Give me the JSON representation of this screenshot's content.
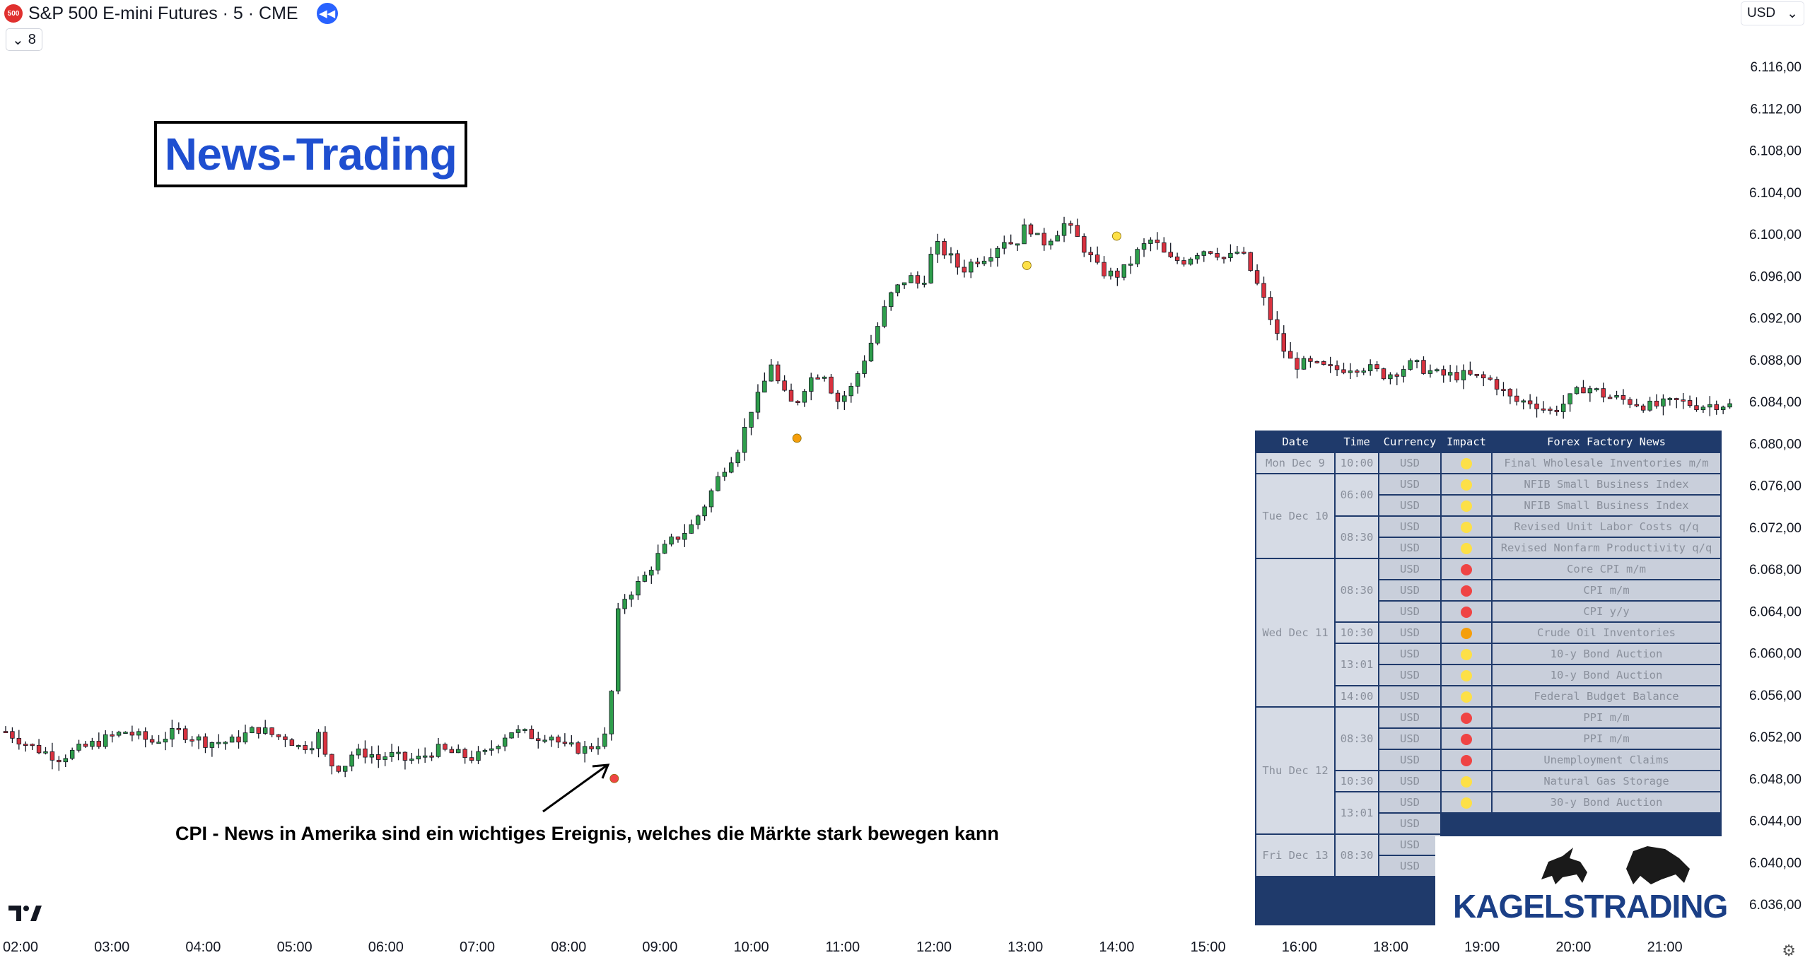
{
  "header": {
    "logo_text": "500",
    "symbol": "S&P 500 E-mini Futures · 5 · CME",
    "indicator_count": "8",
    "currency": "USD"
  },
  "title": "News-Trading",
  "annotation": "CPI - News in Amerika sind ein wichtiges Ereignis, welches die Märkte stark bewegen kann",
  "brand": {
    "name": "KAGELSTRADING"
  },
  "colors": {
    "up": "#2e9e4b",
    "down": "#d9323f",
    "wick": "#131722",
    "high_impact": "#ef4444",
    "medium_impact": "#f59e0b",
    "low_impact": "#fde047"
  },
  "icons": [
    "replay-icon",
    "chevron-down-icon",
    "tradingview-logo-icon",
    "settings-gear-icon"
  ],
  "chart_data": {
    "type": "candlestick",
    "title": "S&P 500 E-mini Futures · 5 · CME",
    "ylim": [
      6034.5,
      6117.5
    ],
    "y_ticks": [
      "6.116,00",
      "6.112,00",
      "6.108,00",
      "6.104,00",
      "6.100,00",
      "6.096,00",
      "6.092,00",
      "6.088,00",
      "6.084,00",
      "6.080,00",
      "6.076,00",
      "6.072,00",
      "6.068,00",
      "6.064,00",
      "6.060,00",
      "6.056,00",
      "6.052,00",
      "6.048,00",
      "6.044,00",
      "6.040,00",
      "6.036,00"
    ],
    "x_ticks": [
      "02:00",
      "03:00",
      "04:00",
      "05:00",
      "06:00",
      "07:00",
      "08:00",
      "09:00",
      "10:00",
      "11:00",
      "12:00",
      "13:00",
      "14:00",
      "15:00",
      "16:00",
      "18:00",
      "19:00",
      "20:00",
      "21:00"
    ],
    "close_path": [
      [
        0,
        6052.5
      ],
      [
        10,
        6051.0
      ],
      [
        20,
        6050.0
      ],
      [
        45,
        6052.5
      ],
      [
        55,
        6051.5
      ],
      [
        60,
        6052.0
      ],
      [
        65,
        6052.5
      ],
      [
        75,
        6051.5
      ],
      [
        85,
        6051.5
      ],
      [
        95,
        6052.8
      ],
      [
        102,
        6052.0
      ],
      [
        106,
        6052.0
      ],
      [
        110,
        6051.0
      ],
      [
        115,
        6051.3
      ],
      [
        118,
        6052.2
      ],
      [
        121,
        6049.5
      ],
      [
        127,
        6049.0
      ],
      [
        130,
        6050.3
      ],
      [
        137,
        6050.5
      ],
      [
        140,
        6049.8
      ],
      [
        144,
        6050.3
      ],
      [
        150,
        6049.8
      ],
      [
        155,
        6049.8
      ],
      [
        162,
        6050.8
      ],
      [
        175,
        6050.0
      ],
      [
        180,
        6050.2
      ],
      [
        190,
        6052.6
      ],
      [
        200,
        6052.0
      ],
      [
        205,
        6052.3
      ],
      [
        210,
        6051.0
      ],
      [
        218,
        6050.8
      ],
      [
        222,
        6051.2
      ],
      [
        226,
        6052.0
      ],
      [
        228,
        6055.5
      ],
      [
        230,
        6063.0
      ],
      [
        232,
        6065.0
      ],
      [
        236,
        6066.0
      ],
      [
        240,
        6067.0
      ],
      [
        245,
        6069.0
      ],
      [
        250,
        6070.5
      ],
      [
        258,
        6072.0
      ],
      [
        263,
        6074.0
      ],
      [
        270,
        6077.5
      ],
      [
        277,
        6080.0
      ],
      [
        280,
        6083.0
      ],
      [
        285,
        6085.0
      ],
      [
        288,
        6088.0
      ],
      [
        292,
        6085.0
      ],
      [
        297,
        6083.5
      ],
      [
        302,
        6086.0
      ],
      [
        308,
        6087.0
      ],
      [
        313,
        6084.0
      ],
      [
        318,
        6085.0
      ],
      [
        325,
        6089.0
      ],
      [
        333,
        6094.0
      ],
      [
        340,
        6096.0
      ],
      [
        345,
        6095.0
      ],
      [
        350,
        6099.0
      ],
      [
        355,
        6098.0
      ],
      [
        360,
        6096.5
      ],
      [
        365,
        6097.5
      ],
      [
        370,
        6098.0
      ],
      [
        376,
        6099.5
      ],
      [
        380,
        6099.0
      ],
      [
        385,
        6101.0
      ],
      [
        390,
        6099.0
      ],
      [
        395,
        6100.0
      ],
      [
        399,
        6101.0
      ],
      [
        404,
        6099.5
      ],
      [
        408,
        6098.0
      ],
      [
        412,
        6096.5
      ],
      [
        418,
        6096.0
      ],
      [
        422,
        6096.7
      ],
      [
        427,
        6098.5
      ],
      [
        432,
        6099.5
      ],
      [
        438,
        6097.5
      ],
      [
        444,
        6097.5
      ],
      [
        450,
        6098.5
      ],
      [
        455,
        6098.5
      ],
      [
        460,
        6097.5
      ],
      [
        465,
        6098.5
      ],
      [
        470,
        6096.0
      ],
      [
        475,
        6093.0
      ],
      [
        480,
        6089.5
      ],
      [
        485,
        6087.5
      ],
      [
        490,
        6087.6
      ],
      [
        500,
        6087.0
      ],
      [
        510,
        6087.5
      ],
      [
        520,
        6086.5
      ],
      [
        530,
        6087.6
      ],
      [
        540,
        6086.5
      ],
      [
        550,
        6086.5
      ],
      [
        560,
        6086.0
      ],
      [
        568,
        6084.0
      ],
      [
        575,
        6084.0
      ],
      [
        582,
        6083.0
      ],
      [
        588,
        6084.0
      ],
      [
        595,
        6085.5
      ],
      [
        603,
        6084.5
      ],
      [
        612,
        6084.0
      ],
      [
        620,
        6083.5
      ],
      [
        630,
        6084.0
      ],
      [
        638,
        6083.6
      ],
      [
        646,
        6083.8
      ],
      [
        652,
        6083.5
      ]
    ],
    "event_markers": [
      {
        "time": "08:30",
        "impact": "high",
        "price": 6048.0
      },
      {
        "time": "10:30",
        "impact": "medium",
        "price": 6080.5
      },
      {
        "time": "13:01",
        "impact": "low",
        "price": 6097.0
      },
      {
        "time": "14:00",
        "impact": "low",
        "price": 6099.8
      }
    ]
  },
  "news_table": {
    "headers": [
      "Date",
      "Time",
      "Currency",
      "Impact",
      "Forex Factory News"
    ],
    "groups": [
      {
        "date": "Mon Dec 9",
        "times": [
          {
            "time": "10:00",
            "rows": [
              {
                "currency": "USD",
                "impact": "low",
                "event": "Final Wholesale Inventories m/m"
              }
            ]
          }
        ]
      },
      {
        "date": "Tue Dec 10",
        "times": [
          {
            "time": "06:00",
            "rows": [
              {
                "currency": "USD",
                "impact": "low",
                "event": "NFIB Small Business Index"
              },
              {
                "currency": "USD",
                "impact": "low",
                "event": "NFIB Small Business Index"
              }
            ]
          },
          {
            "time": "08:30",
            "rows": [
              {
                "currency": "USD",
                "impact": "low",
                "event": "Revised Unit Labor Costs q/q"
              },
              {
                "currency": "USD",
                "impact": "low",
                "event": "Revised Nonfarm Productivity q/q"
              }
            ]
          }
        ]
      },
      {
        "date": "Wed Dec 11",
        "times": [
          {
            "time": "08:30",
            "rows": [
              {
                "currency": "USD",
                "impact": "high",
                "event": "Core CPI m/m"
              },
              {
                "currency": "USD",
                "impact": "high",
                "event": "CPI m/m"
              },
              {
                "currency": "USD",
                "impact": "high",
                "event": "CPI y/y"
              }
            ]
          },
          {
            "time": "10:30",
            "rows": [
              {
                "currency": "USD",
                "impact": "medium",
                "event": "Crude Oil Inventories"
              }
            ]
          },
          {
            "time": "13:01",
            "rows": [
              {
                "currency": "USD",
                "impact": "low",
                "event": "10-y Bond Auction"
              },
              {
                "currency": "USD",
                "impact": "low",
                "event": "10-y Bond Auction"
              }
            ]
          },
          {
            "time": "14:00",
            "rows": [
              {
                "currency": "USD",
                "impact": "low",
                "event": "Federal Budget Balance"
              }
            ]
          }
        ]
      },
      {
        "date": "Thu Dec 12",
        "times": [
          {
            "time": "08:30",
            "rows": [
              {
                "currency": "USD",
                "impact": "high",
                "event": "PPI m/m"
              },
              {
                "currency": "USD",
                "impact": "high",
                "event": "PPI m/m"
              },
              {
                "currency": "USD",
                "impact": "high",
                "event": "Unemployment Claims"
              }
            ]
          },
          {
            "time": "10:30",
            "rows": [
              {
                "currency": "USD",
                "impact": "low",
                "event": "Natural Gas Storage"
              }
            ]
          },
          {
            "time": "13:01",
            "rows": [
              {
                "currency": "USD",
                "impact": "low",
                "event": "30-y Bond Auction"
              },
              {
                "currency": "USD",
                "impact": "",
                "event": ""
              }
            ]
          }
        ]
      },
      {
        "date": "Fri Dec 13",
        "times": [
          {
            "time": "08:30",
            "rows": [
              {
                "currency": "USD",
                "impact": "",
                "event": ""
              },
              {
                "currency": "USD",
                "impact": "",
                "event": ""
              }
            ]
          }
        ]
      }
    ]
  }
}
